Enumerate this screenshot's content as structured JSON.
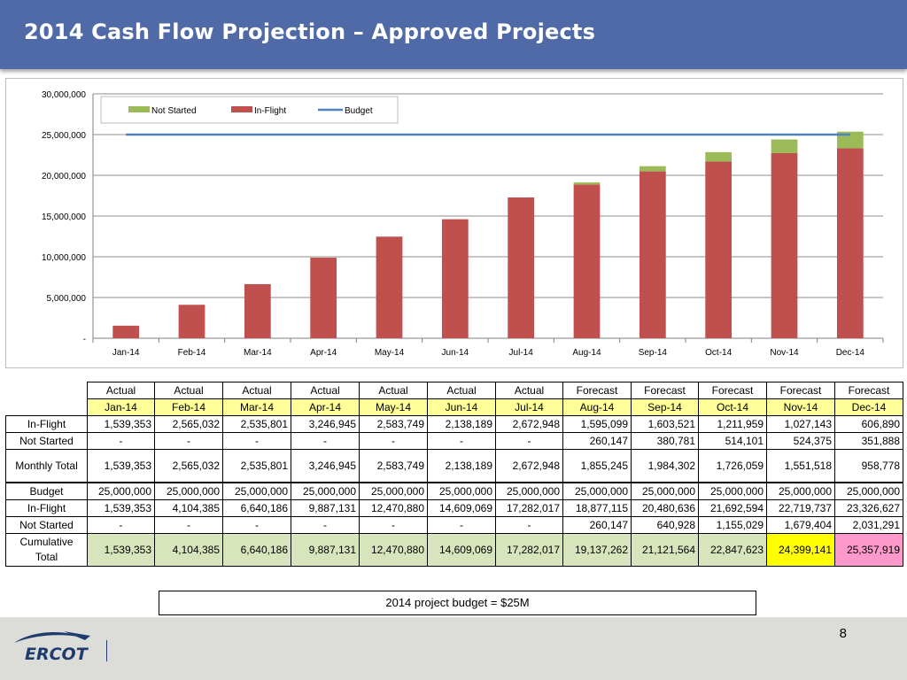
{
  "header": {
    "title": "2014 Cash Flow Projection – Approved Projects"
  },
  "chart_data": {
    "type": "bar",
    "stacked": true,
    "categories": [
      "Jan-14",
      "Feb-14",
      "Mar-14",
      "Apr-14",
      "May-14",
      "Jun-14",
      "Jul-14",
      "Aug-14",
      "Sep-14",
      "Oct-14",
      "Nov-14",
      "Dec-14"
    ],
    "series": [
      {
        "name": "In-Flight",
        "color": "#c0504d",
        "values": [
          1539353,
          4104385,
          6640186,
          9887131,
          12470880,
          14609069,
          17282017,
          18877115,
          20480636,
          21692594,
          22719737,
          23326627
        ]
      },
      {
        "name": "Not Started",
        "color": "#9bbb59",
        "values": [
          0,
          0,
          0,
          0,
          0,
          0,
          0,
          260147,
          640928,
          1155029,
          1679404,
          2031291
        ]
      }
    ],
    "lines": [
      {
        "name": "Budget",
        "color": "#4f81bd",
        "value": 25000000
      }
    ],
    "ylim": [
      0,
      30000000
    ],
    "yticks": [
      0,
      5000000,
      10000000,
      15000000,
      20000000,
      25000000,
      30000000
    ],
    "ytick_labels": [
      "-",
      "5,000,000",
      "10,000,000",
      "15,000,000",
      "20,000,000",
      "25,000,000",
      "30,000,000"
    ],
    "legend": {
      "placement": "top-left",
      "items": [
        "Not Started",
        "In-Flight",
        "Budget"
      ]
    },
    "grid": true,
    "xlabel": "",
    "ylabel": ""
  },
  "table": {
    "status_row": [
      "Actual",
      "Actual",
      "Actual",
      "Actual",
      "Actual",
      "Actual",
      "Actual",
      "Forecast",
      "Forecast",
      "Forecast",
      "Forecast",
      "Forecast"
    ],
    "month_row": [
      "Jan-14",
      "Feb-14",
      "Mar-14",
      "Apr-14",
      "May-14",
      "Jun-14",
      "Jul-14",
      "Aug-14",
      "Sep-14",
      "Oct-14",
      "Nov-14",
      "Dec-14"
    ],
    "monthly": {
      "inflight_label": "In-Flight",
      "inflight": [
        "1,539,353",
        "2,565,032",
        "2,535,801",
        "3,246,945",
        "2,583,749",
        "2,138,189",
        "2,672,948",
        "1,595,099",
        "1,603,521",
        "1,211,959",
        "1,027,143",
        "606,890"
      ],
      "notstarted_label": "Not Started",
      "notstarted": [
        "-",
        "-",
        "-",
        "-",
        "-",
        "-",
        "-",
        "260,147",
        "380,781",
        "514,101",
        "524,375",
        "351,888"
      ],
      "total_label": "Monthly Total",
      "total": [
        "1,539,353",
        "2,565,032",
        "2,535,801",
        "3,246,945",
        "2,583,749",
        "2,138,189",
        "2,672,948",
        "1,855,245",
        "1,984,302",
        "1,726,059",
        "1,551,518",
        "958,778"
      ]
    },
    "cumulative": {
      "budget_label": "Budget",
      "budget": [
        "25,000,000",
        "25,000,000",
        "25,000,000",
        "25,000,000",
        "25,000,000",
        "25,000,000",
        "25,000,000",
        "25,000,000",
        "25,000,000",
        "25,000,000",
        "25,000,000",
        "25,000,000"
      ],
      "inflight_label": "In-Flight",
      "inflight": [
        "1,539,353",
        "4,104,385",
        "6,640,186",
        "9,887,131",
        "12,470,880",
        "14,609,069",
        "17,282,017",
        "18,877,115",
        "20,480,636",
        "21,692,594",
        "22,719,737",
        "23,326,627"
      ],
      "notstarted_label": "Not Started",
      "notstarted": [
        "-",
        "-",
        "-",
        "-",
        "-",
        "-",
        "-",
        "260,147",
        "640,928",
        "1,155,029",
        "1,679,404",
        "2,031,291"
      ],
      "total_label": "Cumulative Total",
      "total": [
        "1,539,353",
        "4,104,385",
        "6,640,186",
        "9,887,131",
        "12,470,880",
        "14,609,069",
        "17,282,017",
        "19,137,262",
        "21,121,564",
        "22,847,623",
        "24,399,141",
        "25,357,919"
      ]
    }
  },
  "note": "2014 project budget = $25M",
  "footer": {
    "page_number": "8",
    "logo_text": "ERCOT"
  }
}
